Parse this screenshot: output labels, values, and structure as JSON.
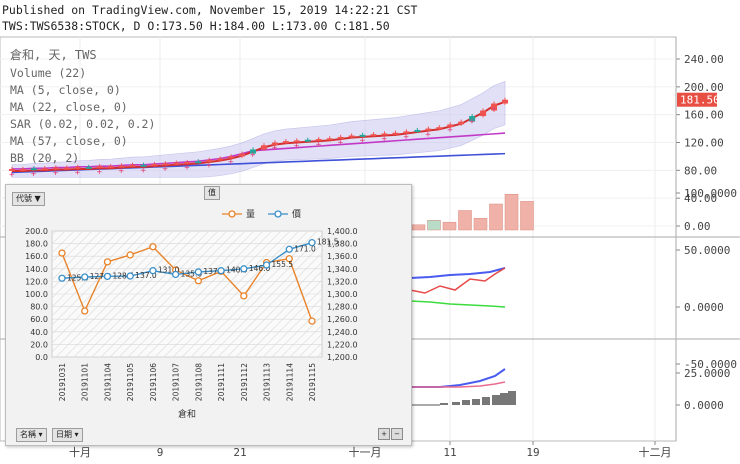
{
  "header": {
    "published": "Published on TradingView.com, November 15, 2019 14:22:21 CST",
    "symbol_line": "TWS:TWS6538:STOCK, D O:173.50 H:184.00 L:173.00 C:181.50"
  },
  "main_chart": {
    "title": "倉和, 天, TWS",
    "indicators": [
      "Volume (22)",
      "MA (5, close, 0)",
      "MA (22, close, 0)",
      "SAR (0.02, 0.02, 0.2)",
      "MA (57, close, 0)",
      "BB (20, 2)"
    ],
    "y_ticks": [
      "240.00",
      "200.00",
      "160.00",
      "120.00",
      "80.00",
      "40.00",
      "0.00"
    ],
    "y_tick_values": [
      240,
      200,
      160,
      120,
      80,
      40,
      0
    ],
    "price_badge": "181.50",
    "price_value": 181.5,
    "x_ticks": [
      "十月",
      "9",
      "21",
      "十一月",
      "11",
      "19",
      "十二月"
    ],
    "candles": [
      82,
      82,
      83,
      83,
      84,
      84,
      85,
      85,
      86,
      86,
      87,
      88,
      88,
      89,
      90,
      91,
      92,
      93,
      95,
      97,
      100,
      104,
      110,
      116,
      120,
      122,
      123,
      124,
      125,
      126,
      128,
      130,
      131,
      132,
      133,
      134,
      136,
      138,
      140,
      142,
      146,
      150,
      158,
      166,
      176,
      181.5
    ],
    "volume_bars": [
      8,
      15,
      12,
      30,
      18,
      40,
      55,
      44
    ],
    "colors": {
      "up": "#26a69a",
      "down": "#ef5350",
      "ma5": "#d32f2f",
      "ma22": "#c239c8",
      "ma57": "#3f51d8",
      "bb_fill": "#c9c7ef",
      "badge": "#e84f43"
    }
  },
  "panel2": {
    "y_ticks": [
      "100.0000",
      "50.0000",
      "0.0000",
      "-50.0000"
    ],
    "y_tick_values": [
      100,
      50,
      0,
      -50
    ]
  },
  "panel3": {
    "y_ticks": [
      "25.0000",
      "0.0000"
    ],
    "y_tick_values": [
      25,
      0
    ]
  },
  "inset": {
    "top_buttons": [
      "代號",
      "值"
    ],
    "sub_buttons": [
      "價",
      "量"
    ],
    "bottom_buttons": [
      "名稱",
      "日期"
    ],
    "corner_buttons": [
      "+",
      "−"
    ],
    "legend": [
      "量",
      "價"
    ],
    "colors": {
      "volume": "#e8832a",
      "price": "#3b8fc9"
    }
  },
  "chart_data": {
    "type": "line",
    "title": "",
    "xlabel": "倉和",
    "categories": [
      "20191031",
      "20191101",
      "20191104",
      "20191105",
      "20191106",
      "20191107",
      "20191108",
      "20191111",
      "20191112",
      "20191113",
      "20191114",
      "20191115"
    ],
    "series": [
      {
        "name": "量",
        "axis": "left",
        "values": [
          165,
          73,
          151,
          162,
          175,
          138,
          121,
          136,
          97,
          150,
          156,
          57
        ]
      },
      {
        "name": "價",
        "axis": "right",
        "values": [
          1325,
          1327,
          1328,
          1328.5,
          1337,
          1331,
          1335,
          1337,
          1340,
          1346,
          1371,
          1381.5
        ]
      }
    ],
    "point_labels": [
      "125.5",
      "127.0",
      "128.5",
      "137.0",
      "131.0",
      "135.0",
      "137.0",
      "140.0",
      "146.0",
      "155.5",
      "171.0",
      "181.5"
    ],
    "ylim_left": [
      0,
      200
    ],
    "ylim_right": [
      1200,
      1400
    ],
    "y_ticks_left": [
      "200.0",
      "180.0",
      "160.0",
      "140.0",
      "120.0",
      "100.0",
      "80.0",
      "60.0",
      "40.0",
      "20.0",
      "0.0"
    ],
    "y_ticks_right": [
      "1,400.0",
      "1,380.0",
      "1,360.0",
      "1,340.0",
      "1,320.0",
      "1,300.0",
      "1,280.0",
      "1,260.0",
      "1,240.0",
      "1,220.0",
      "1,200.0"
    ],
    "legend_position": "top-right"
  }
}
